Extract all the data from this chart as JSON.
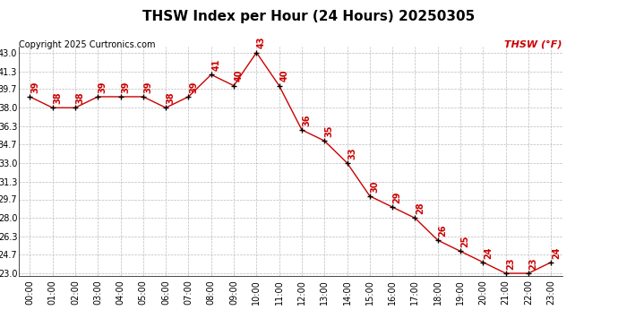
{
  "title": "THSW Index per Hour (24 Hours) 20250305",
  "copyright": "Copyright 2025 Curtronics.com",
  "legend_label": "THSW (°F)",
  "hours": [
    "00:00",
    "01:00",
    "02:00",
    "03:00",
    "04:00",
    "05:00",
    "06:00",
    "07:00",
    "08:00",
    "09:00",
    "10:00",
    "11:00",
    "12:00",
    "13:00",
    "14:00",
    "15:00",
    "16:00",
    "17:00",
    "18:00",
    "19:00",
    "20:00",
    "21:00",
    "22:00",
    "23:00"
  ],
  "values": [
    39,
    38,
    38,
    39,
    39,
    39,
    38,
    39,
    41,
    40,
    43,
    40,
    36,
    35,
    33,
    30,
    29,
    28,
    26,
    25,
    24,
    23,
    23,
    24
  ],
  "line_color": "#cc0000",
  "marker_color": "#000000",
  "background_color": "#ffffff",
  "grid_color": "#bbbbbb",
  "ylim_min": 23.0,
  "ylim_max": 43.0,
  "yticks": [
    23.0,
    24.7,
    26.3,
    28.0,
    29.7,
    31.3,
    33.0,
    34.7,
    36.3,
    38.0,
    39.7,
    41.3,
    43.0
  ],
  "title_fontsize": 11,
  "tick_fontsize": 7,
  "copyright_fontsize": 7,
  "legend_fontsize": 8,
  "annotation_fontsize": 7
}
